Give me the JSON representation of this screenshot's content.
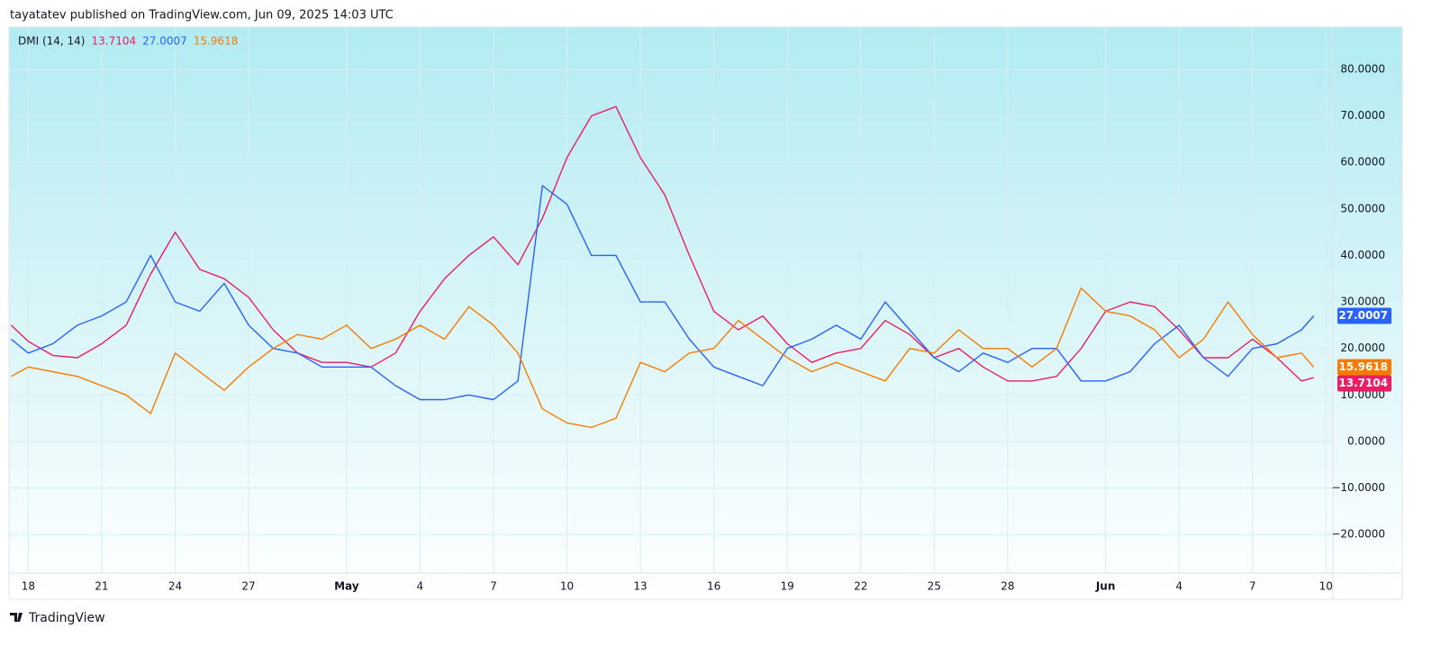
{
  "header_text": "tayatatev published on TradingView.com, Jun 09, 2025 14:03 UTC",
  "brand": "TradingView",
  "chart_data": {
    "type": "line",
    "indicator": "DMI (14, 14)",
    "x": [
      -0.7,
      0,
      1,
      2,
      3,
      4,
      5,
      6,
      7,
      8,
      9,
      10,
      11,
      12,
      13,
      14,
      15,
      16,
      17,
      18,
      19,
      20,
      21,
      22,
      23,
      24,
      25,
      26,
      27,
      28,
      29,
      30,
      31,
      32,
      33,
      34,
      35,
      36,
      37,
      38,
      39,
      40,
      41,
      42,
      43,
      44,
      45,
      46,
      47,
      48,
      49,
      50,
      51,
      52,
      52.5
    ],
    "xlim": [
      -0.75,
      53.1
    ],
    "xticks": [
      {
        "value": 0,
        "label": "18"
      },
      {
        "value": 3,
        "label": "21"
      },
      {
        "value": 6,
        "label": "24"
      },
      {
        "value": 9,
        "label": "27"
      },
      {
        "value": 13,
        "label": "May"
      },
      {
        "value": 16,
        "label": "4"
      },
      {
        "value": 19,
        "label": "7"
      },
      {
        "value": 22,
        "label": "10"
      },
      {
        "value": 25,
        "label": "13"
      },
      {
        "value": 28,
        "label": "16"
      },
      {
        "value": 31,
        "label": "19"
      },
      {
        "value": 34,
        "label": "22"
      },
      {
        "value": 37,
        "label": "25"
      },
      {
        "value": 40,
        "label": "28"
      },
      {
        "value": 44,
        "label": "Jun"
      },
      {
        "value": 47,
        "label": "4"
      },
      {
        "value": 50,
        "label": "7"
      },
      {
        "value": 53,
        "label": "10"
      }
    ],
    "ylim": [
      -28.3,
      89.1
    ],
    "yticks": [
      {
        "value": -20,
        "label": "−20.0000"
      },
      {
        "value": -10,
        "label": "−10.0000"
      },
      {
        "value": 0,
        "label": "0.0000"
      },
      {
        "value": 10,
        "label": "10.0000"
      },
      {
        "value": 20,
        "label": "20.0000"
      },
      {
        "value": 30,
        "label": "30.0000"
      },
      {
        "value": 40,
        "label": "40.0000"
      },
      {
        "value": 50,
        "label": "50.0000"
      },
      {
        "value": 60,
        "label": "60.0000"
      },
      {
        "value": 70,
        "label": "70.0000"
      },
      {
        "value": 80,
        "label": "80.0000"
      }
    ],
    "grid": true,
    "series": [
      {
        "color": "#e91e63",
        "values": [
          25,
          21.5,
          18.5,
          18,
          21,
          25,
          36,
          45,
          37,
          35,
          31,
          24,
          19,
          17,
          17,
          16,
          19,
          28,
          35,
          40,
          44,
          38,
          48,
          61,
          70,
          72,
          61,
          53,
          40,
          28,
          24,
          27,
          21,
          17,
          19,
          20,
          26,
          23,
          18,
          20,
          16,
          13,
          13,
          14,
          20,
          28,
          30,
          29,
          24,
          18,
          18,
          22,
          18,
          13,
          13.7104
        ]
      },
      {
        "color": "#2962ff",
        "values": [
          22,
          19,
          21,
          25,
          27,
          30,
          40,
          30,
          28,
          34,
          25,
          20,
          19,
          16,
          16,
          16,
          12,
          9,
          9,
          10,
          9,
          13,
          55,
          51,
          40,
          40,
          30,
          30,
          22,
          16,
          14,
          12,
          20,
          22,
          25,
          22,
          30,
          24,
          18,
          15,
          19,
          17,
          20,
          20,
          13,
          13,
          15,
          21,
          25,
          18,
          14,
          20,
          21,
          24,
          27.0007
        ]
      },
      {
        "color": "#f57c00",
        "values": [
          14,
          16,
          15,
          14,
          12,
          10,
          6,
          19,
          15,
          11,
          16,
          20,
          23,
          22,
          25,
          20,
          22,
          25,
          22,
          29,
          25,
          19,
          7,
          4,
          3,
          5,
          17,
          15,
          19,
          20,
          26,
          22,
          18,
          15,
          17,
          15,
          13,
          20,
          19,
          24,
          20,
          20,
          16,
          20,
          33,
          28,
          27,
          24,
          18,
          22,
          30,
          23,
          18,
          19,
          15.9618
        ]
      }
    ]
  }
}
